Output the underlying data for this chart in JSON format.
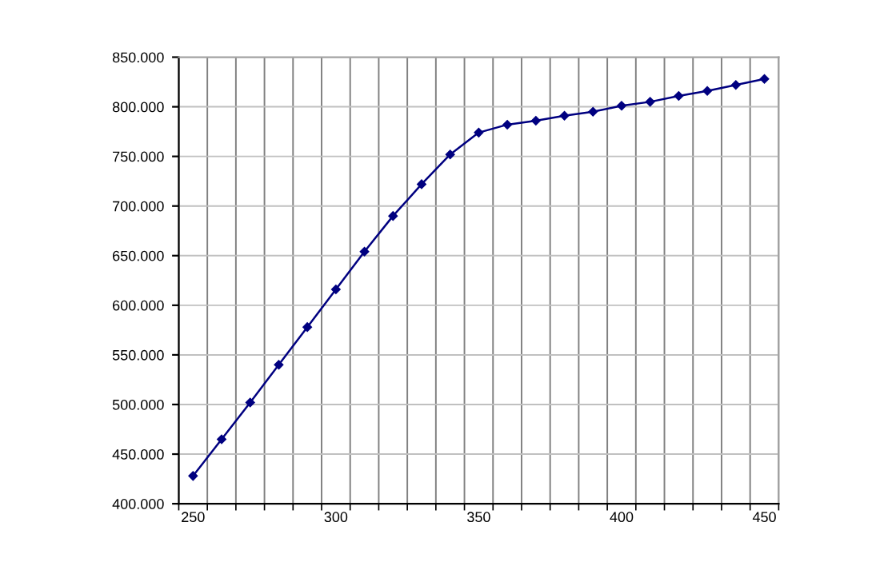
{
  "chart_data": {
    "type": "line",
    "categories": [
      "250",
      null,
      null,
      null,
      null,
      "300",
      null,
      null,
      null,
      null,
      "350",
      null,
      null,
      null,
      null,
      "400",
      null,
      null,
      null,
      null,
      "450"
    ],
    "series": [
      {
        "color": "#000080",
        "values": [
          428000,
          465000,
          502000,
          540000,
          578000,
          616000,
          654000,
          690000,
          722000,
          752000,
          774000,
          782000,
          786000,
          791000,
          795000,
          801000,
          805000,
          811000,
          816000,
          822000,
          828000
        ]
      }
    ],
    "ylim": [
      400000,
      850000
    ],
    "yticks": [
      {
        "value": 400000,
        "label": "400.000"
      },
      {
        "value": 450000,
        "label": "450.000"
      },
      {
        "value": 500000,
        "label": "500.000"
      },
      {
        "value": 550000,
        "label": "550.000"
      },
      {
        "value": 600000,
        "label": "600.000"
      },
      {
        "value": 650000,
        "label": "650.000"
      },
      {
        "value": 700000,
        "label": "700.000"
      },
      {
        "value": 750000,
        "label": "750.000"
      },
      {
        "value": 800000,
        "label": "800.000"
      },
      {
        "value": 850000,
        "label": "850.000"
      }
    ],
    "grid": true,
    "marker": "diamond",
    "line_style": "solid"
  }
}
